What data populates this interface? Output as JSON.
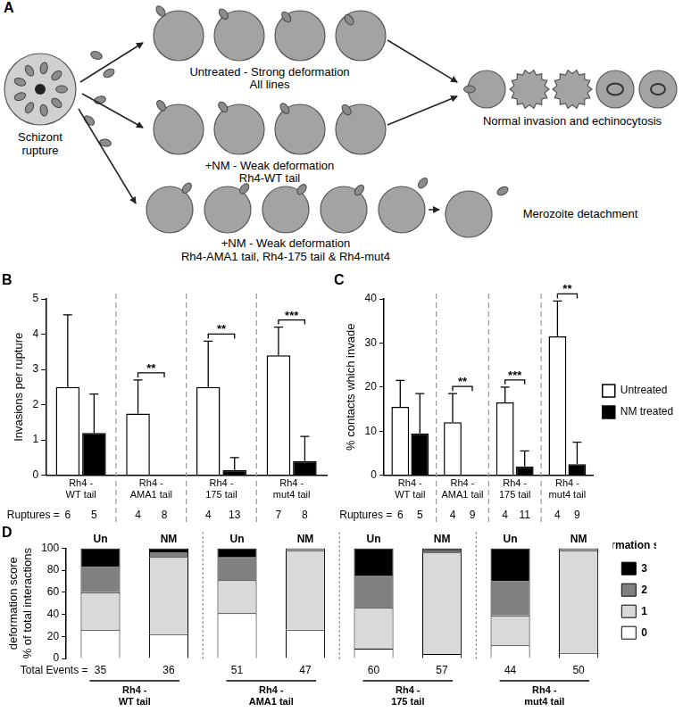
{
  "panel_a": {
    "panel": "A",
    "source": "Schizont rupture",
    "rows": [
      {
        "title": "Untreated - Strong deformation",
        "subtitle": "All lines"
      },
      {
        "title": "+NM - Weak deformation",
        "subtitle": "Rh4-WT tail"
      },
      {
        "title": "+NM - Weak deformation",
        "subtitle": "Rh4-AMA1 tail, Rh4-175 tail & Rh4-mut4"
      }
    ],
    "outcomes": [
      "Normal invasion and echinocytosis",
      "Merozoite detachment"
    ]
  },
  "chart_data": [
    {
      "panel": "B",
      "type": "bar",
      "categories": [
        "Rh4 - WT tail",
        "Rh4 - AMA1 tail",
        "Rh4 - 175 tail",
        "Rh4 - mut4 tail"
      ],
      "y_label": "Invasions per rupture",
      "ylim": [
        0,
        5
      ],
      "yticks": [
        0,
        1,
        2,
        3,
        4,
        5
      ],
      "grid": false,
      "series": [
        {
          "color": "#ffffff",
          "values": [
            2.5,
            1.75,
            2.5,
            3.4
          ],
          "errors": [
            2.05,
            0.95,
            1.3,
            0.8
          ],
          "ruptures": [
            6,
            4,
            4,
            7
          ]
        },
        {
          "color": "#000000",
          "values": [
            1.2,
            0,
            0.15,
            0.4
          ],
          "errors": [
            1.1,
            null,
            0.35,
            0.7
          ],
          "ruptures": [
            5,
            8,
            13,
            8
          ]
        }
      ],
      "significance": [
        null,
        "**",
        "**",
        "***"
      ],
      "count_label": "Ruptures ="
    },
    {
      "panel": "C",
      "type": "bar",
      "categories": [
        "Rh4 - WT tail",
        "Rh4 - AMA1 tail",
        "Rh4 - 175 tail",
        "Rh4 - mut4 tail"
      ],
      "y_label": "% contacts which invade",
      "ylim": [
        0,
        40
      ],
      "yticks": [
        0,
        10,
        20,
        30,
        40
      ],
      "grid": false,
      "legend": "right",
      "series": [
        {
          "name": "Untreated",
          "color": "#ffffff",
          "values": [
            15.5,
            12,
            16.5,
            31.5
          ],
          "errors": [
            6,
            6.5,
            3.5,
            8
          ],
          "ruptures": [
            6,
            4,
            4,
            4
          ]
        },
        {
          "name": "NM treated",
          "color": "#000000",
          "values": [
            9.5,
            0,
            2,
            2.5
          ],
          "errors": [
            9,
            null,
            3.5,
            5
          ],
          "ruptures": [
            5,
            9,
            11,
            9
          ]
        }
      ],
      "significance": [
        null,
        "**",
        "***",
        "**"
      ],
      "count_label": "Ruptures ="
    },
    {
      "panel": "D",
      "type": "bar",
      "stacked": true,
      "categories": [
        "Un",
        "NM",
        "Un",
        "NM",
        "Un",
        "NM",
        "Un",
        "NM"
      ],
      "groups": [
        "Rh4 - WT tail",
        "Rh4 - AMA1 tail",
        "Rh4 - 175 tail",
        "Rh4 - mut4 tail"
      ],
      "y_label": [
        "deformation score",
        "% of total interactions"
      ],
      "ylim": [
        0,
        100
      ],
      "yticks": [
        0,
        20,
        40,
        60,
        80,
        100
      ],
      "grid": false,
      "legend": "right",
      "legend_title": "Deformation score",
      "count_label": "Total Events =",
      "totals": [
        35,
        36,
        51,
        47,
        60,
        57,
        44,
        50
      ],
      "series": [
        {
          "name": "0",
          "color": "#ffffff",
          "values": [
            26,
            22,
            41,
            26,
            9,
            4,
            12,
            5
          ]
        },
        {
          "name": "1",
          "color": "#d9d9d9",
          "values": [
            34,
            70,
            30,
            72,
            37,
            92,
            27,
            93
          ]
        },
        {
          "name": "2",
          "color": "#808080",
          "values": [
            23,
            5,
            21,
            2,
            29,
            2,
            31,
            2
          ]
        },
        {
          "name": "3",
          "color": "#000000",
          "values": [
            17,
            3,
            8,
            0,
            25,
            2,
            30,
            0
          ]
        }
      ]
    }
  ]
}
